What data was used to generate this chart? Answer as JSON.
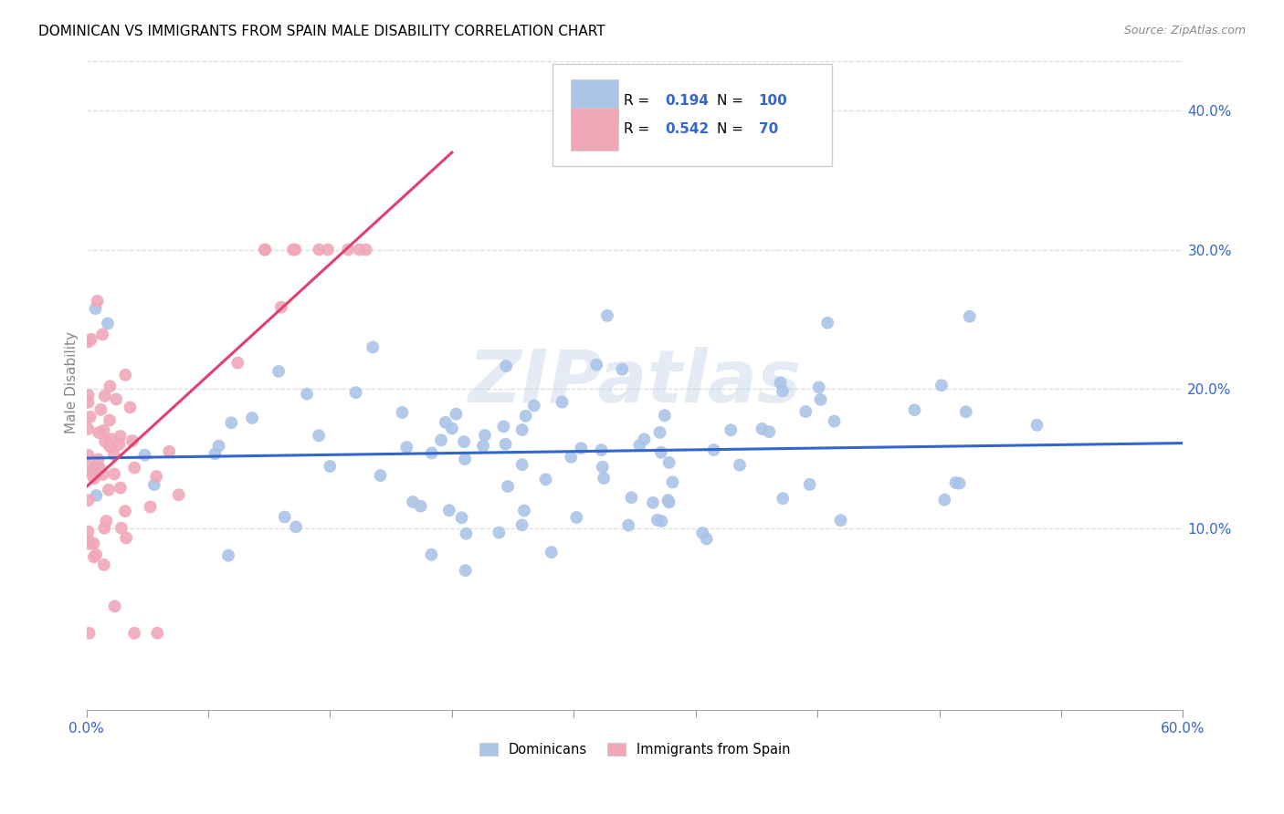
{
  "title": "DOMINICAN VS IMMIGRANTS FROM SPAIN MALE DISABILITY CORRELATION CHART",
  "source": "Source: ZipAtlas.com",
  "ylabel": "Male Disability",
  "right_yticks": [
    "10.0%",
    "20.0%",
    "30.0%",
    "40.0%"
  ],
  "right_ytick_vals": [
    0.1,
    0.2,
    0.3,
    0.4
  ],
  "xlim": [
    0.0,
    0.6
  ],
  "ylim": [
    -0.03,
    0.44
  ],
  "blue_R": 0.194,
  "blue_N": 100,
  "pink_R": 0.542,
  "pink_N": 70,
  "blue_color": "#aac4e8",
  "pink_color": "#f0a8b8",
  "blue_line_color": "#3366cc",
  "pink_line_color": "#e04070",
  "watermark_text": "ZIPatlas",
  "legend_label_blue": "Dominicans",
  "legend_label_pink": "Immigrants from Spain",
  "R_label_color": "#000000",
  "N_label_color": "#3366cc",
  "grid_color": "#dddddd",
  "axis_label_color": "#3366cc",
  "tick_color": "#999999"
}
